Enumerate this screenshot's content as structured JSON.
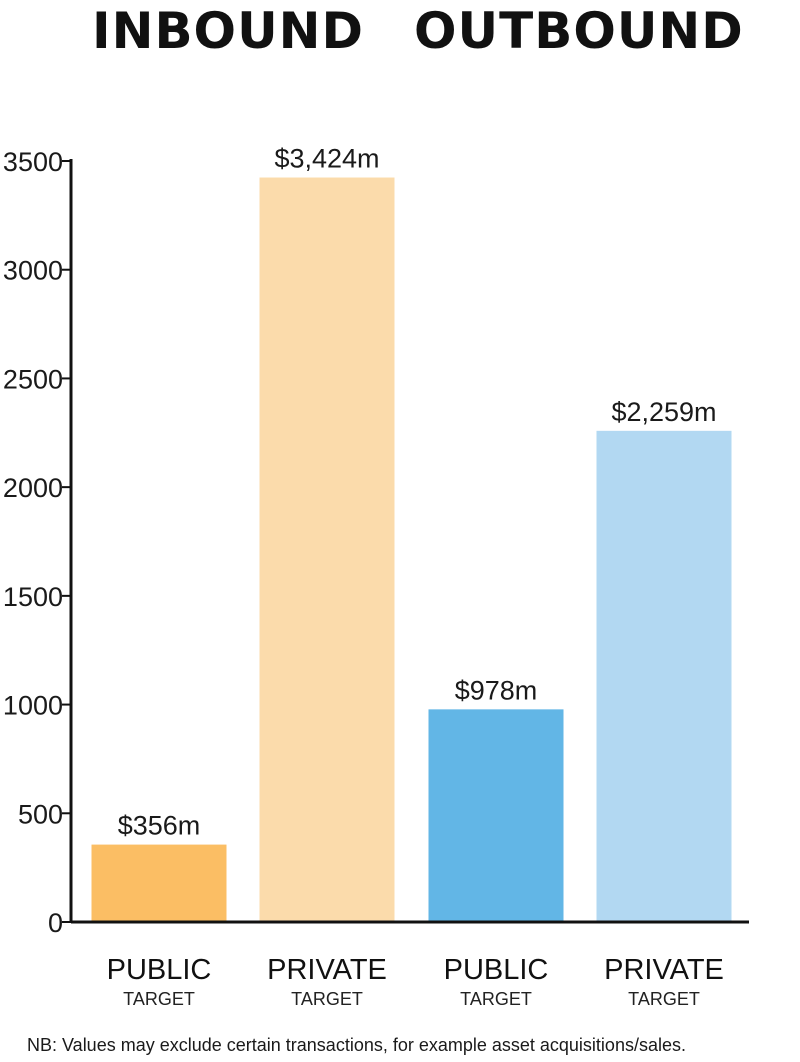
{
  "chart_data": {
    "type": "bar",
    "group_titles": [
      "INBOUND",
      "OUTBOUND"
    ],
    "groups": [
      "INBOUND",
      "INBOUND",
      "OUTBOUND",
      "OUTBOUND"
    ],
    "categories": [
      "PUBLIC",
      "PRIVATE",
      "PUBLIC",
      "PRIVATE"
    ],
    "category_sub": [
      "TARGET",
      "TARGET",
      "TARGET",
      "TARGET"
    ],
    "values": [
      356,
      3424,
      978,
      2259
    ],
    "value_labels": [
      "$356m",
      "$3,424m",
      "$978m",
      "$2,259m"
    ],
    "colors": [
      "#fbbe64",
      "#fbdbab",
      "#62b6e6",
      "#b2d8f2"
    ],
    "yticks": [
      0,
      500,
      1000,
      1500,
      2000,
      2500,
      3000,
      3500
    ],
    "ylim": [
      0,
      3500
    ],
    "grid": false,
    "footnote": "NB: Values may exclude certain transactions, for example asset acquisitions/sales."
  }
}
